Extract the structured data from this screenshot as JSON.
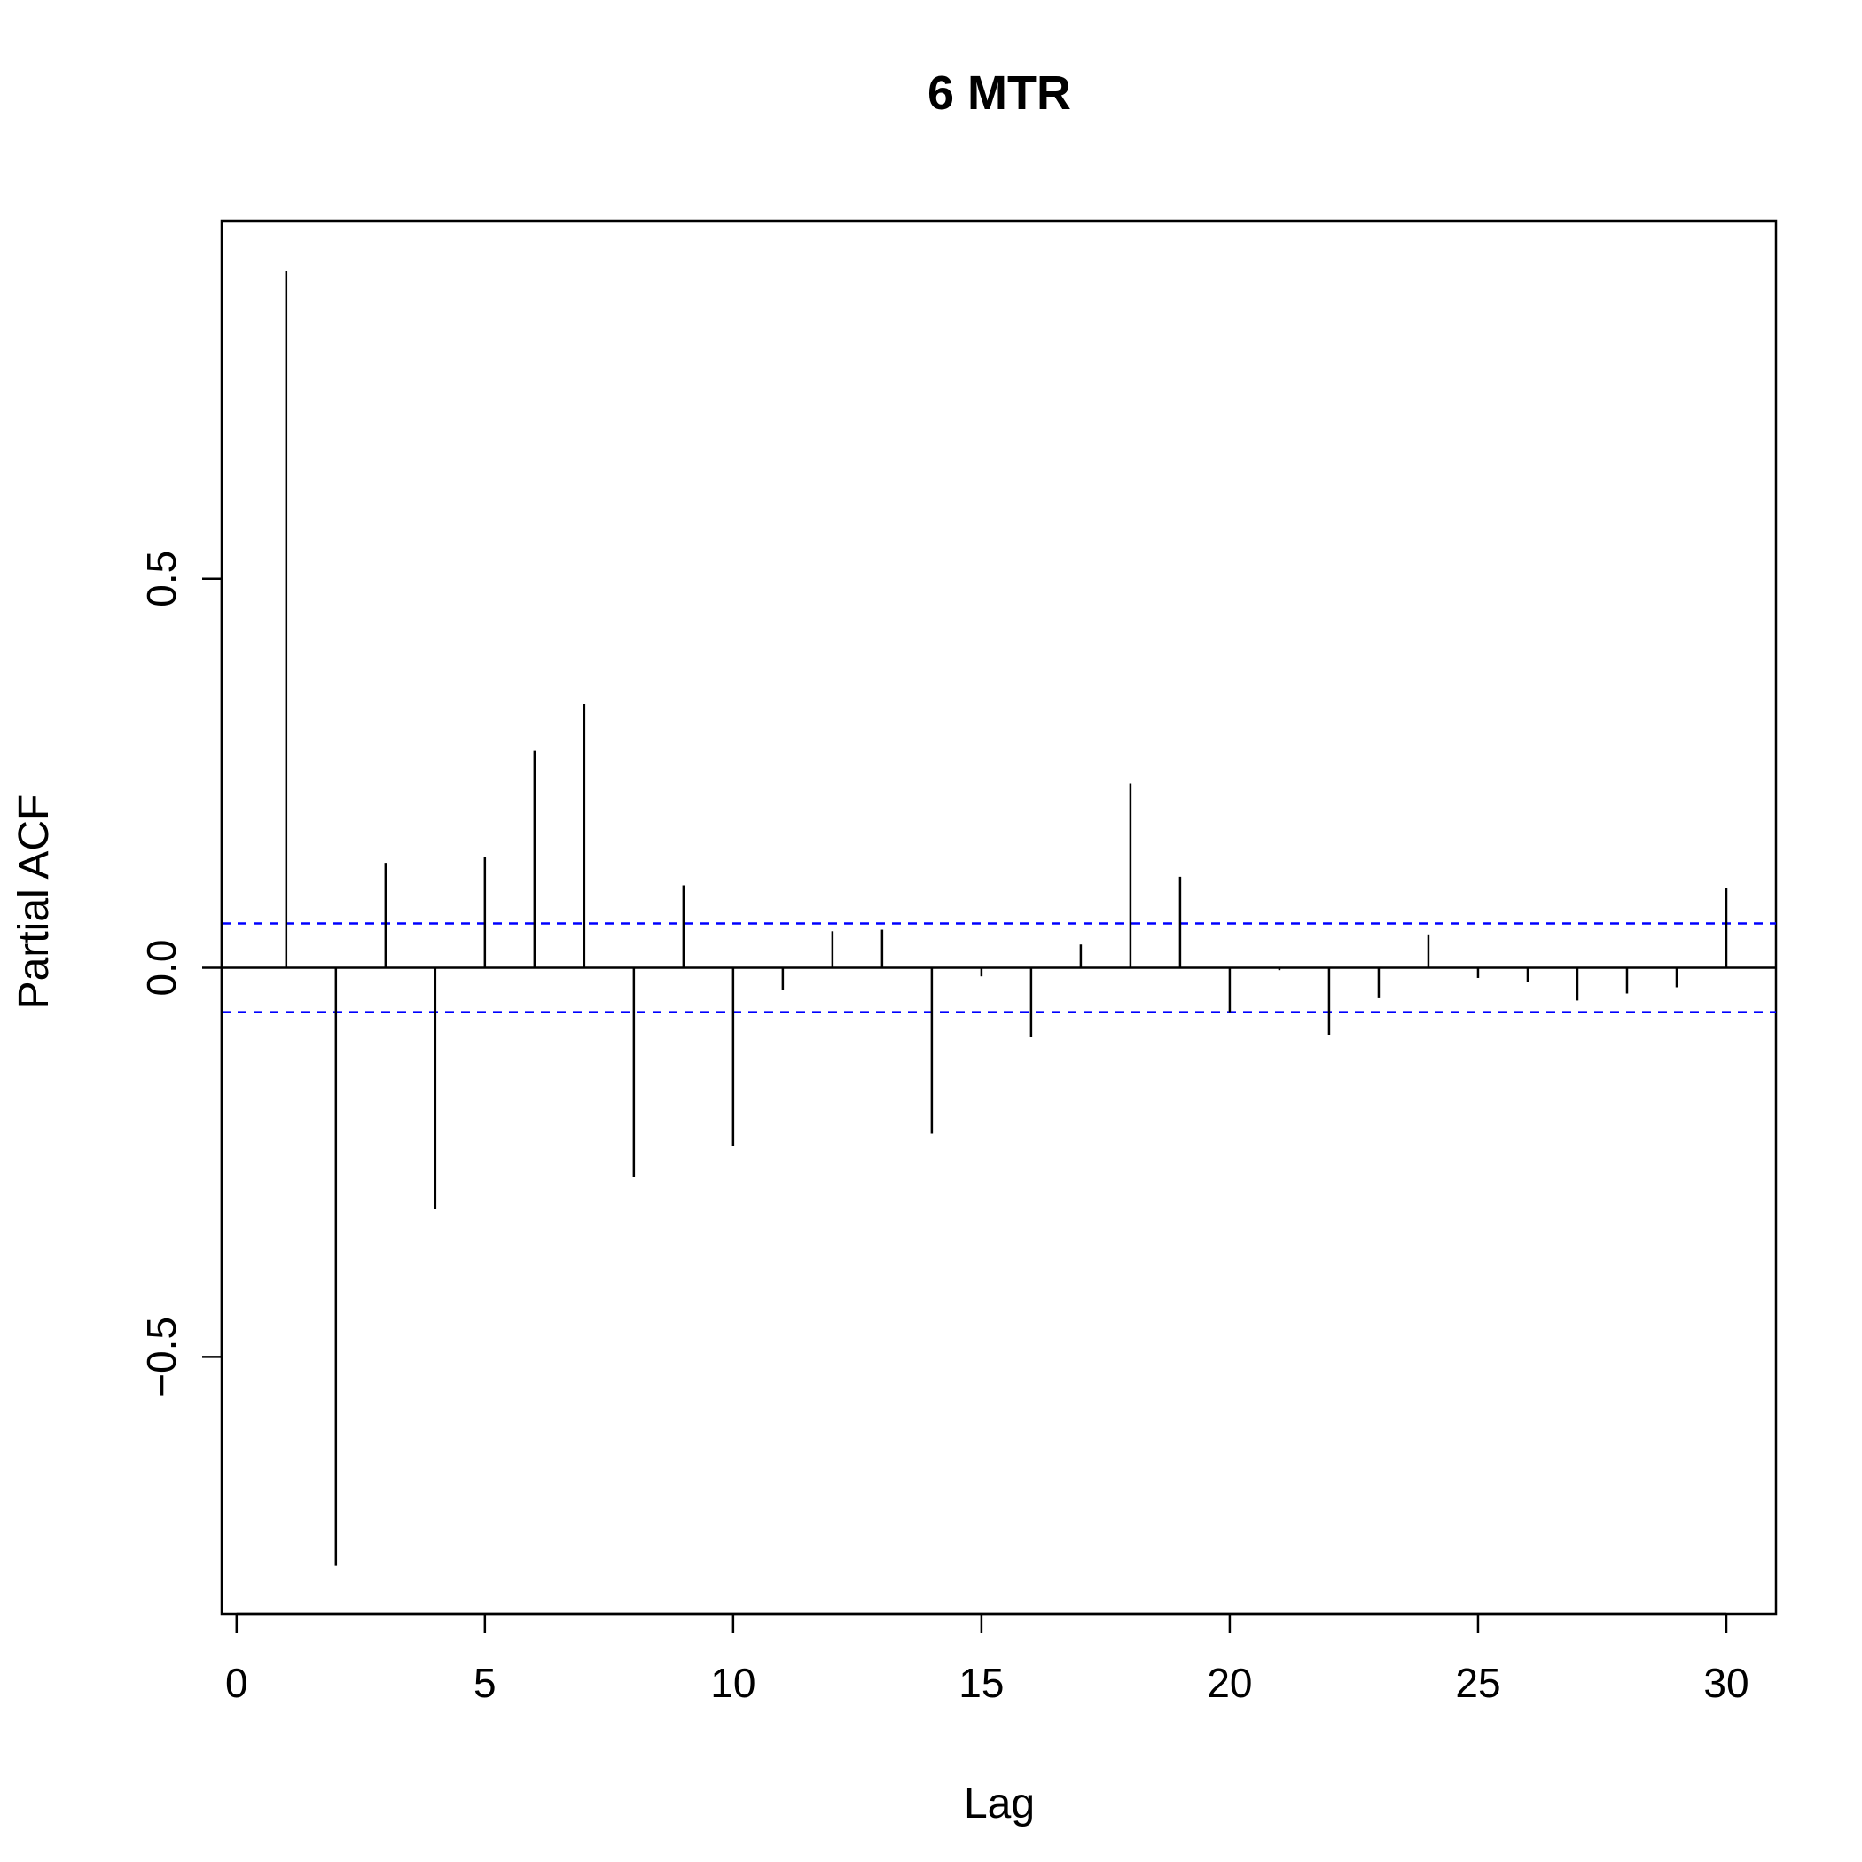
{
  "chart_data": {
    "type": "bar",
    "title": "6 MTR",
    "xlabel": "Lag",
    "ylabel": "Partial ACF",
    "xlim": [
      -0.3,
      31
    ],
    "ylim": [
      -0.83,
      0.96
    ],
    "x_ticks": [
      0,
      5,
      10,
      15,
      20,
      25,
      30
    ],
    "x_tick_labels": [
      "0",
      "5",
      "10",
      "15",
      "20",
      "25",
      "30"
    ],
    "y_ticks": [
      -0.5,
      0.0,
      0.5
    ],
    "y_tick_labels": [
      "−0.5",
      "0.0",
      "0.5"
    ],
    "lags": [
      1,
      2,
      3,
      4,
      5,
      6,
      7,
      8,
      9,
      10,
      11,
      12,
      13,
      14,
      15,
      16,
      17,
      18,
      19,
      20,
      21,
      22,
      23,
      24,
      25,
      26,
      27,
      28,
      29,
      30
    ],
    "values": [
      0.895,
      -0.768,
      0.135,
      -0.31,
      0.143,
      0.279,
      0.339,
      -0.269,
      0.106,
      -0.229,
      -0.028,
      0.047,
      0.049,
      -0.213,
      -0.011,
      -0.089,
      0.03,
      0.237,
      0.117,
      -0.057,
      -0.003,
      -0.086,
      -0.038,
      0.043,
      -0.013,
      -0.018,
      -0.042,
      -0.033,
      -0.025,
      0.103
    ],
    "confidence_bound": 0.057,
    "grid": false,
    "colors": {
      "bars": "#000000",
      "confidence": "#0000ff",
      "axis": "#000000"
    }
  }
}
